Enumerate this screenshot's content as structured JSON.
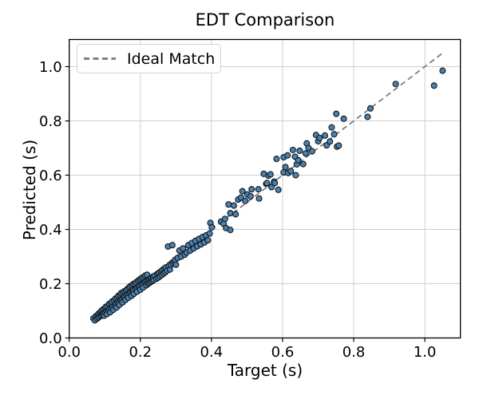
{
  "chart_data": {
    "type": "scatter",
    "title": "EDT Comparison",
    "xlabel": "Target (s)",
    "ylabel": "Predicted (s)",
    "xlim": [
      0.0,
      1.1
    ],
    "ylim": [
      0.0,
      1.1
    ],
    "xticks": [
      0.0,
      0.2,
      0.4,
      0.6,
      0.8,
      1.0
    ],
    "yticks": [
      0.0,
      0.2,
      0.4,
      0.6,
      0.8,
      1.0
    ],
    "tick_decimals": 1,
    "grid": true,
    "legend": {
      "position": "upper-left",
      "entries": [
        {
          "label": "Ideal Match",
          "style": "dashed-line",
          "color": "#7f7f7f"
        }
      ]
    },
    "reference_line": {
      "name": "Ideal Match",
      "x": [
        0.07,
        1.05
      ],
      "y": [
        0.07,
        1.05
      ],
      "style": "dashed",
      "color": "#7f7f7f"
    },
    "colors": {
      "point_fill": "#4682b4",
      "point_edge": "#161616",
      "grid": "#cfcfcf",
      "spine": "#000000",
      "background": "#ffffff"
    },
    "series": [
      {
        "name": "EDT predictions",
        "marker": "circle",
        "points": [
          [
            0.068,
            0.072
          ],
          [
            0.072,
            0.065
          ],
          [
            0.075,
            0.08
          ],
          [
            0.078,
            0.071
          ],
          [
            0.08,
            0.085
          ],
          [
            0.082,
            0.075
          ],
          [
            0.083,
            0.09
          ],
          [
            0.086,
            0.079
          ],
          [
            0.088,
            0.095
          ],
          [
            0.09,
            0.083
          ],
          [
            0.091,
            0.1
          ],
          [
            0.093,
            0.087
          ],
          [
            0.095,
            0.105
          ],
          [
            0.096,
            0.09
          ],
          [
            0.098,
            0.082
          ],
          [
            0.1,
            0.108
          ],
          [
            0.101,
            0.094
          ],
          [
            0.103,
            0.115
          ],
          [
            0.105,
            0.098
          ],
          [
            0.106,
            0.088
          ],
          [
            0.108,
            0.118
          ],
          [
            0.11,
            0.102
          ],
          [
            0.112,
            0.125
          ],
          [
            0.113,
            0.107
          ],
          [
            0.115,
            0.095
          ],
          [
            0.117,
            0.128
          ],
          [
            0.118,
            0.11
          ],
          [
            0.12,
            0.134
          ],
          [
            0.122,
            0.115
          ],
          [
            0.124,
            0.104
          ],
          [
            0.126,
            0.138
          ],
          [
            0.128,
            0.119
          ],
          [
            0.13,
            0.145
          ],
          [
            0.131,
            0.126
          ],
          [
            0.133,
            0.112
          ],
          [
            0.135,
            0.148
          ],
          [
            0.136,
            0.131
          ],
          [
            0.138,
            0.155
          ],
          [
            0.14,
            0.135
          ],
          [
            0.141,
            0.122
          ],
          [
            0.143,
            0.158
          ],
          [
            0.145,
            0.14
          ],
          [
            0.146,
            0.165
          ],
          [
            0.148,
            0.144
          ],
          [
            0.15,
            0.131
          ],
          [
            0.151,
            0.168
          ],
          [
            0.153,
            0.149
          ],
          [
            0.155,
            0.172
          ],
          [
            0.156,
            0.153
          ],
          [
            0.158,
            0.14
          ],
          [
            0.16,
            0.175
          ],
          [
            0.161,
            0.157
          ],
          [
            0.163,
            0.18
          ],
          [
            0.165,
            0.161
          ],
          [
            0.166,
            0.148
          ],
          [
            0.168,
            0.185
          ],
          [
            0.17,
            0.165
          ],
          [
            0.171,
            0.19
          ],
          [
            0.173,
            0.169
          ],
          [
            0.175,
            0.155
          ],
          [
            0.176,
            0.193
          ],
          [
            0.178,
            0.173
          ],
          [
            0.179,
            0.198
          ],
          [
            0.18,
            0.176
          ],
          [
            0.182,
            0.163
          ],
          [
            0.184,
            0.2
          ],
          [
            0.186,
            0.18
          ],
          [
            0.188,
            0.205
          ],
          [
            0.19,
            0.184
          ],
          [
            0.191,
            0.171
          ],
          [
            0.193,
            0.21
          ],
          [
            0.195,
            0.188
          ],
          [
            0.197,
            0.214
          ],
          [
            0.198,
            0.192
          ],
          [
            0.2,
            0.178
          ],
          [
            0.201,
            0.218
          ],
          [
            0.203,
            0.196
          ],
          [
            0.205,
            0.222
          ],
          [
            0.207,
            0.2
          ],
          [
            0.208,
            0.186
          ],
          [
            0.21,
            0.225
          ],
          [
            0.212,
            0.204
          ],
          [
            0.214,
            0.23
          ],
          [
            0.215,
            0.208
          ],
          [
            0.217,
            0.194
          ],
          [
            0.219,
            0.233
          ],
          [
            0.22,
            0.211
          ],
          [
            0.222,
            0.2
          ],
          [
            0.224,
            0.215
          ],
          [
            0.226,
            0.203
          ],
          [
            0.228,
            0.219
          ],
          [
            0.23,
            0.207
          ],
          [
            0.232,
            0.222
          ],
          [
            0.234,
            0.21
          ],
          [
            0.236,
            0.226
          ],
          [
            0.238,
            0.214
          ],
          [
            0.24,
            0.229
          ],
          [
            0.245,
            0.218
          ],
          [
            0.248,
            0.235
          ],
          [
            0.25,
            0.222
          ],
          [
            0.252,
            0.24
          ],
          [
            0.255,
            0.227
          ],
          [
            0.258,
            0.245
          ],
          [
            0.26,
            0.232
          ],
          [
            0.262,
            0.25
          ],
          [
            0.265,
            0.237
          ],
          [
            0.268,
            0.255
          ],
          [
            0.27,
            0.242
          ],
          [
            0.272,
            0.26
          ],
          [
            0.275,
            0.248
          ],
          [
            0.278,
            0.337
          ],
          [
            0.28,
            0.265
          ],
          [
            0.283,
            0.252
          ],
          [
            0.286,
            0.27
          ],
          [
            0.29,
            0.342
          ],
          [
            0.292,
            0.276
          ],
          [
            0.295,
            0.282
          ],
          [
            0.298,
            0.288
          ],
          [
            0.3,
            0.27
          ],
          [
            0.305,
            0.295
          ],
          [
            0.31,
            0.322
          ],
          [
            0.315,
            0.3
          ],
          [
            0.32,
            0.33
          ],
          [
            0.325,
            0.307
          ],
          [
            0.33,
            0.315
          ],
          [
            0.335,
            0.342
          ],
          [
            0.34,
            0.322
          ],
          [
            0.345,
            0.35
          ],
          [
            0.35,
            0.33
          ],
          [
            0.355,
            0.358
          ],
          [
            0.36,
            0.338
          ],
          [
            0.365,
            0.365
          ],
          [
            0.37,
            0.345
          ],
          [
            0.375,
            0.372
          ],
          [
            0.38,
            0.352
          ],
          [
            0.385,
            0.378
          ],
          [
            0.39,
            0.36
          ],
          [
            0.395,
            0.385
          ],
          [
            0.397,
            0.424
          ],
          [
            0.401,
            0.408
          ],
          [
            0.427,
            0.429
          ],
          [
            0.434,
            0.421
          ],
          [
            0.438,
            0.439
          ],
          [
            0.441,
            0.405
          ],
          [
            0.448,
            0.492
          ],
          [
            0.453,
            0.398
          ],
          [
            0.453,
            0.46
          ],
          [
            0.463,
            0.488
          ],
          [
            0.468,
            0.456
          ],
          [
            0.475,
            0.51
          ],
          [
            0.483,
            0.517
          ],
          [
            0.487,
            0.541
          ],
          [
            0.495,
            0.505
          ],
          [
            0.501,
            0.529
          ],
          [
            0.51,
            0.522
          ],
          [
            0.513,
            0.548
          ],
          [
            0.532,
            0.548
          ],
          [
            0.534,
            0.514
          ],
          [
            0.547,
            0.605
          ],
          [
            0.554,
            0.568
          ],
          [
            0.556,
            0.571
          ],
          [
            0.56,
            0.598
          ],
          [
            0.566,
            0.603
          ],
          [
            0.569,
            0.556
          ],
          [
            0.576,
            0.576
          ],
          [
            0.578,
            0.571
          ],
          [
            0.583,
            0.66
          ],
          [
            0.588,
            0.546
          ],
          [
            0.603,
            0.61
          ],
          [
            0.603,
            0.666
          ],
          [
            0.608,
            0.63
          ],
          [
            0.614,
            0.673
          ],
          [
            0.616,
            0.608
          ],
          [
            0.623,
            0.615
          ],
          [
            0.629,
            0.693
          ],
          [
            0.635,
            0.668
          ],
          [
            0.637,
            0.6
          ],
          [
            0.64,
            0.64
          ],
          [
            0.644,
            0.655
          ],
          [
            0.648,
            0.69
          ],
          [
            0.658,
            0.641
          ],
          [
            0.665,
            0.68
          ],
          [
            0.668,
            0.717
          ],
          [
            0.673,
            0.7
          ],
          [
            0.683,
            0.688
          ],
          [
            0.694,
            0.748
          ],
          [
            0.7,
            0.725
          ],
          [
            0.704,
            0.737
          ],
          [
            0.719,
            0.746
          ],
          [
            0.724,
            0.71
          ],
          [
            0.733,
            0.724
          ],
          [
            0.738,
            0.776
          ],
          [
            0.745,
            0.751
          ],
          [
            0.751,
            0.826
          ],
          [
            0.753,
            0.705
          ],
          [
            0.758,
            0.709
          ],
          [
            0.772,
            0.808
          ],
          [
            0.839,
            0.815
          ],
          [
            0.847,
            0.846
          ],
          [
            0.918,
            0.936
          ],
          [
            1.026,
            0.93
          ],
          [
            1.05,
            0.985
          ]
        ]
      }
    ]
  }
}
